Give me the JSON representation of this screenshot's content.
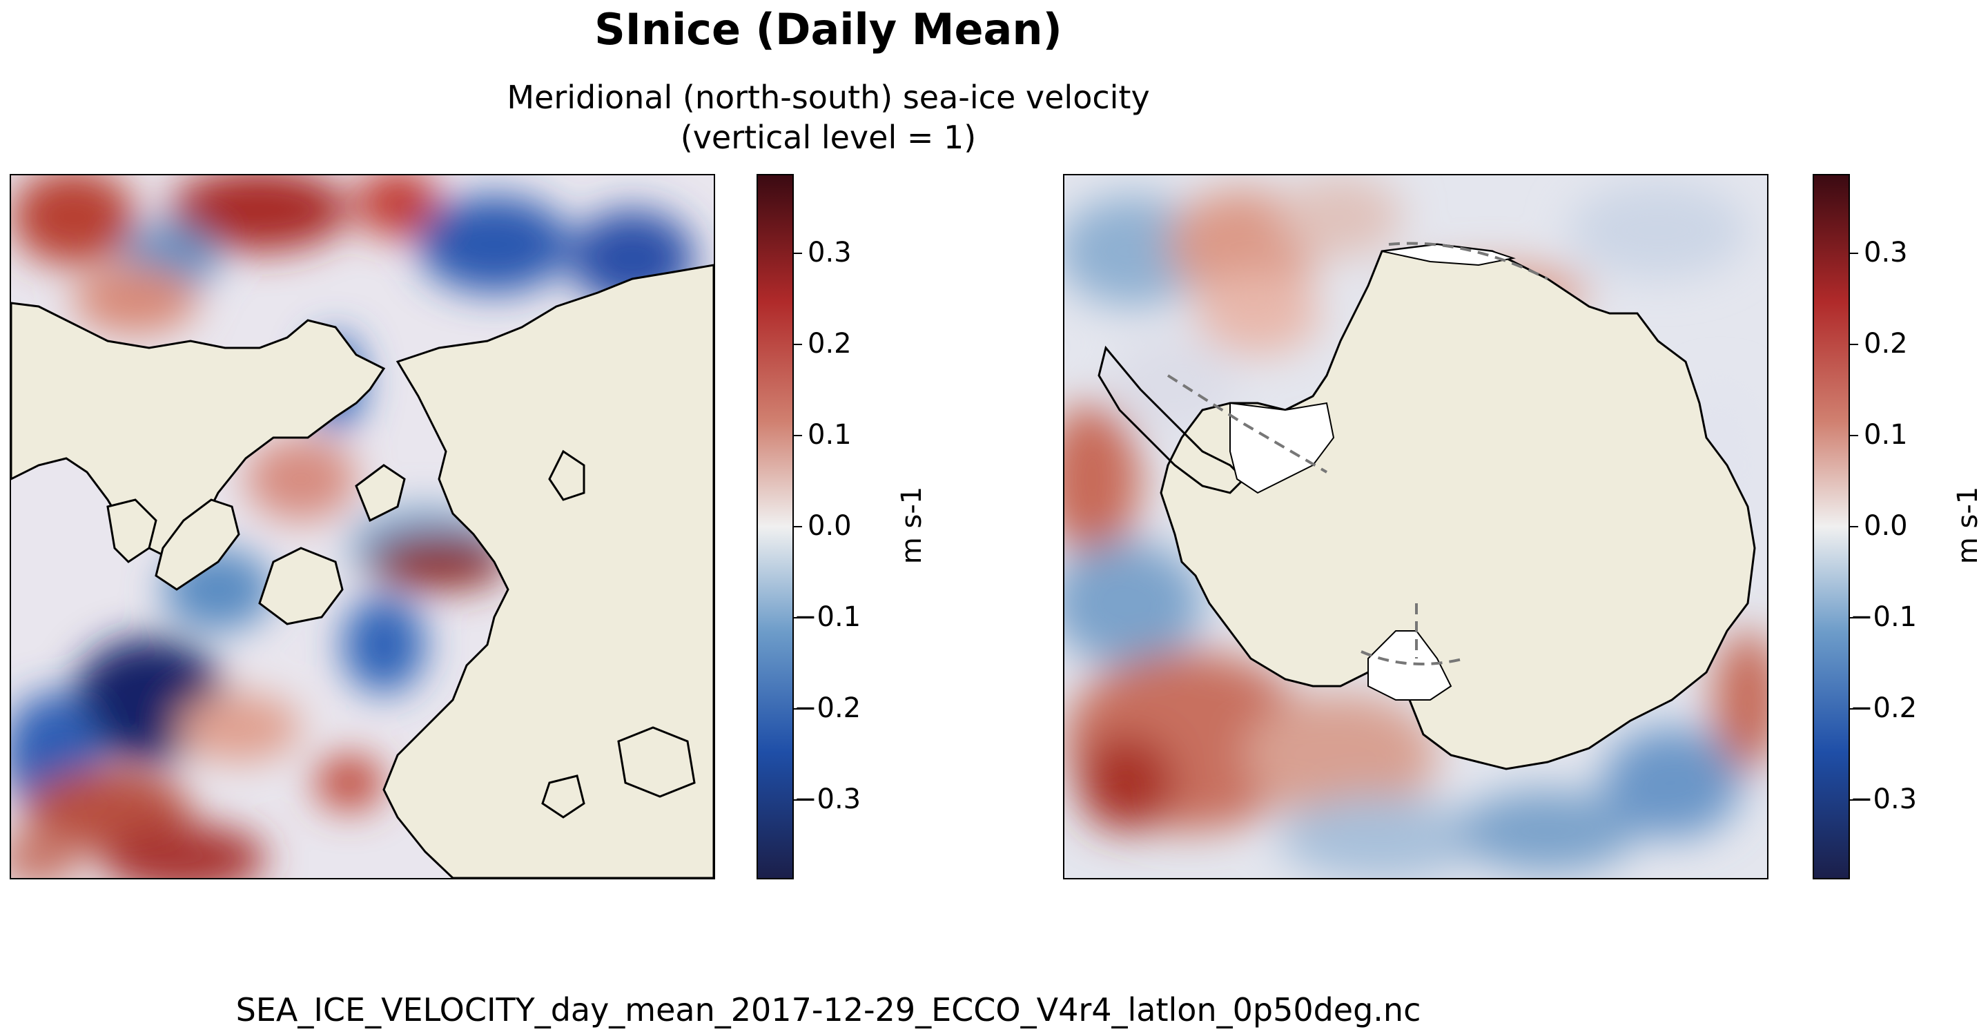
{
  "title": "SInice (Daily Mean)",
  "subtitle_line1": "Meridional (north-south) sea-ice velocity",
  "subtitle_line2": "(vertical level = 1)",
  "footer": "SEA_ICE_VELOCITY_day_mean_2017-12-29_ECCO_V4r4_latlon_0p50deg.nc",
  "colorbar": {
    "label": "m s-1",
    "ticks": [
      "0.3",
      "0.2",
      "0.1",
      "0.0",
      "−0.1",
      "−0.2",
      "−0.3"
    ],
    "tick_values": [
      0.3,
      0.2,
      0.1,
      0.0,
      -0.1,
      -0.2,
      -0.3
    ],
    "range": [
      -0.38,
      0.38
    ],
    "colormap": [
      "#1b1f4a",
      "#1f4fa8",
      "#6d9cc9",
      "#f0f0f0",
      "#d08070",
      "#b02a2a",
      "#3b0a12"
    ]
  },
  "colors": {
    "land": "#efecdc",
    "coast": "#000000"
  }
}
